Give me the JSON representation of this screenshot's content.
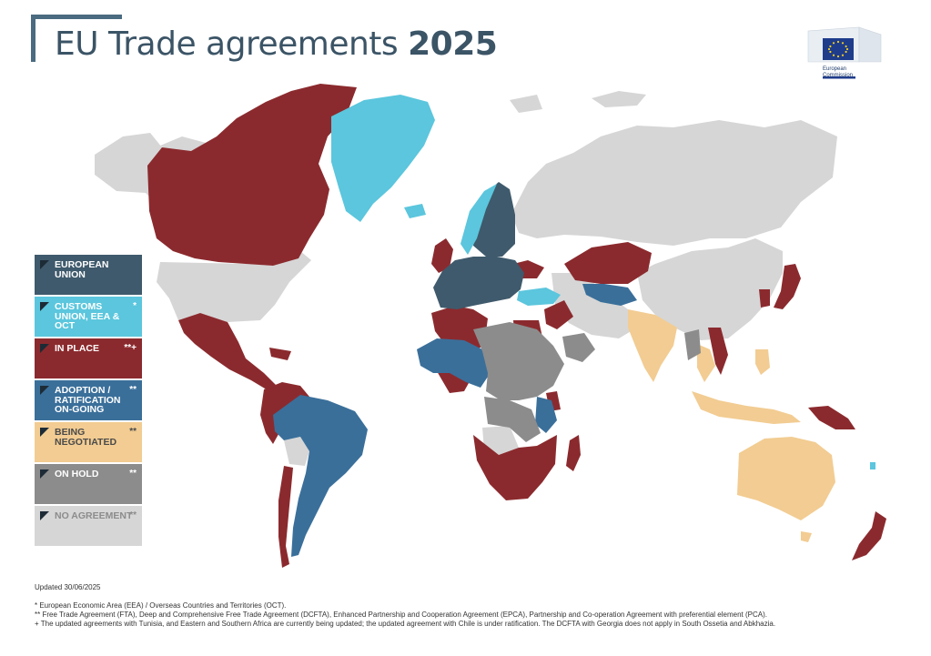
{
  "header": {
    "title_main": "EU Trade agreements",
    "title_year": "2025",
    "logo_text": "European Commission"
  },
  "colors": {
    "eu": "#3f5a6c",
    "customs_union": "#5bc6dd",
    "in_place": "#8b2a2e",
    "adoption": "#3a6f9a",
    "negotiated": "#f2cc92",
    "on_hold": "#8c8c8c",
    "no_agreement": "#d6d6d6"
  },
  "legend": [
    {
      "label": "European Union",
      "mark": "",
      "color": "#3f5a6c"
    },
    {
      "label": "Customs Union, EEA & OCT",
      "mark": "*",
      "color": "#5bc6dd"
    },
    {
      "label": "In place",
      "mark": "**+",
      "color": "#8b2a2e"
    },
    {
      "label": "Adoption / ratification on-going",
      "mark": "**",
      "color": "#3a6f9a"
    },
    {
      "label": "Being negotiated",
      "mark": "**",
      "color": "#f2cc92"
    },
    {
      "label": "On hold",
      "mark": "**",
      "color": "#8c8c8c"
    },
    {
      "label": "No agreement",
      "mark": "**",
      "color": "#d6d6d6"
    }
  ],
  "footer": {
    "updated": "Updated 30/06/2025",
    "note1": "* European Economic Area (EEA) / Overseas Countries and Territories (OCT).",
    "note2": "** Free Trade Agreement (FTA), Deep and Comprehensive Free Trade Agreement (DCFTA), Enhanced Partnership and Cooperation Agreement (EPCA), Partnership and Co-operation Agreement with preferential element (PCA).",
    "note3": "+ The updated agreements with Tunisia, and Eastern and Southern Africa are currently being updated; the updated agreement with Chile is under ratification. The DCFTA with Georgia does not apply in South Ossetia and Abkhazia."
  }
}
